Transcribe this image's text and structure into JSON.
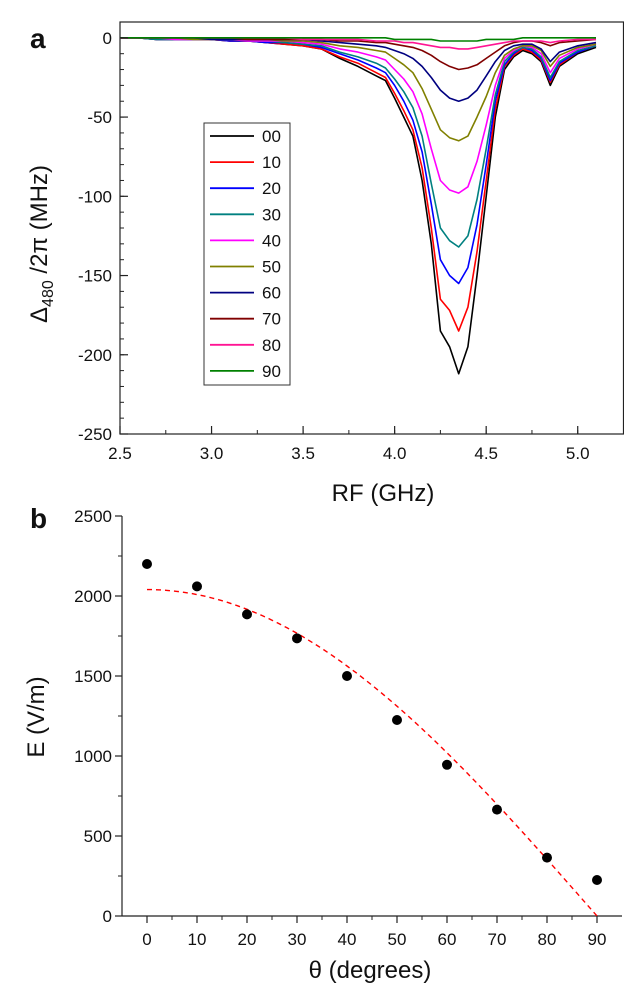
{
  "chart_data": [
    {
      "type": "line",
      "panel_label": "a",
      "xlabel": "RF (GHz)",
      "ylabel": "Δ480 /2π (MHz)",
      "ylabel_parts": {
        "prefix": "Δ",
        "subscript": "480",
        "suffix": " /2π (MHz)"
      },
      "xlim": [
        2.5,
        5.25
      ],
      "ylim": [
        -250,
        10
      ],
      "xticks": [
        2.5,
        3.0,
        3.5,
        4.0,
        4.5,
        5.0
      ],
      "xtick_labels": [
        "2.5",
        "3.0",
        "3.5",
        "4.0",
        "4.5",
        "5.0"
      ],
      "yticks": [
        0,
        -50,
        -100,
        -150,
        -200,
        -250
      ],
      "ytick_labels": [
        "0",
        "-50",
        "-100",
        "-150",
        "-200",
        "-250"
      ],
      "legend_position": "center-left",
      "x": [
        2.5,
        2.6,
        2.7,
        2.8,
        2.9,
        3.0,
        3.1,
        3.2,
        3.3,
        3.4,
        3.5,
        3.6,
        3.7,
        3.8,
        3.9,
        3.95,
        4.0,
        4.05,
        4.1,
        4.15,
        4.2,
        4.25,
        4.3,
        4.35,
        4.4,
        4.45,
        4.5,
        4.55,
        4.6,
        4.65,
        4.7,
        4.75,
        4.8,
        4.85,
        4.9,
        5.0,
        5.1
      ],
      "series": [
        {
          "name": "00",
          "color": "#000000",
          "values": [
            0,
            0,
            -1,
            -1,
            -1,
            -1,
            -2,
            -2,
            -3,
            -4,
            -5,
            -7,
            -13,
            -18,
            -24,
            -27,
            -38,
            -50,
            -62,
            -90,
            -130,
            -185,
            -195,
            -212,
            -195,
            -150,
            -100,
            -50,
            -20,
            -12,
            -8,
            -10,
            -15,
            -30,
            -18,
            -10,
            -6
          ]
        },
        {
          "name": "10",
          "color": "#ff0000",
          "values": [
            0,
            0,
            -1,
            -1,
            -1,
            -1,
            -2,
            -2,
            -3,
            -4,
            -5,
            -7,
            -12,
            -16,
            -22,
            -25,
            -35,
            -46,
            -58,
            -82,
            -120,
            -165,
            -172,
            -185,
            -170,
            -135,
            -90,
            -45,
            -18,
            -11,
            -7,
            -9,
            -14,
            -28,
            -17,
            -9,
            -5
          ]
        },
        {
          "name": "20",
          "color": "#0000ff",
          "values": [
            0,
            0,
            -1,
            -1,
            -1,
            -1,
            -2,
            -2,
            -3,
            -3,
            -4,
            -6,
            -10,
            -14,
            -19,
            -22,
            -30,
            -40,
            -52,
            -72,
            -105,
            -140,
            -150,
            -155,
            -145,
            -118,
            -80,
            -40,
            -17,
            -10,
            -6,
            -8,
            -13,
            -27,
            -16,
            -9,
            -5
          ]
        },
        {
          "name": "30",
          "color": "#008080",
          "values": [
            0,
            0,
            -1,
            -1,
            -1,
            -1,
            -1,
            -2,
            -2,
            -3,
            -4,
            -5,
            -9,
            -12,
            -16,
            -19,
            -26,
            -34,
            -44,
            -62,
            -92,
            -120,
            -128,
            -132,
            -125,
            -102,
            -70,
            -36,
            -15,
            -9,
            -6,
            -7,
            -12,
            -25,
            -15,
            -8,
            -5
          ]
        },
        {
          "name": "40",
          "color": "#ff00ff",
          "values": [
            0,
            0,
            0,
            -1,
            -1,
            -1,
            -1,
            -2,
            -2,
            -2,
            -3,
            -4,
            -7,
            -9,
            -12,
            -14,
            -20,
            -26,
            -34,
            -48,
            -70,
            -90,
            -96,
            -98,
            -94,
            -78,
            -55,
            -30,
            -13,
            -8,
            -5,
            -6,
            -10,
            -22,
            -13,
            -7,
            -4
          ]
        },
        {
          "name": "50",
          "color": "#808000",
          "values": [
            0,
            0,
            0,
            0,
            -1,
            -1,
            -1,
            -1,
            -1,
            -2,
            -2,
            -3,
            -5,
            -6,
            -8,
            -9,
            -13,
            -17,
            -22,
            -32,
            -45,
            -58,
            -63,
            -65,
            -62,
            -50,
            -37,
            -22,
            -11,
            -7,
            -5,
            -5,
            -8,
            -18,
            -11,
            -6,
            -4
          ]
        },
        {
          "name": "60",
          "color": "#000080",
          "values": [
            0,
            0,
            0,
            0,
            0,
            -1,
            -1,
            -1,
            -1,
            -1,
            -1,
            -2,
            -3,
            -4,
            -5,
            -6,
            -8,
            -10,
            -13,
            -18,
            -25,
            -33,
            -38,
            -40,
            -38,
            -33,
            -24,
            -15,
            -8,
            -5,
            -4,
            -4,
            -7,
            -15,
            -9,
            -5,
            -3
          ]
        },
        {
          "name": "70",
          "color": "#800000",
          "values": [
            0,
            0,
            0,
            0,
            0,
            0,
            0,
            -1,
            -1,
            -1,
            -1,
            -1,
            -2,
            -2,
            -3,
            -3,
            -4,
            -5,
            -6,
            -8,
            -11,
            -15,
            -18,
            -20,
            -19,
            -17,
            -13,
            -9,
            -5,
            -3,
            -2,
            -2,
            -3,
            -5,
            -3,
            -2,
            -1
          ]
        },
        {
          "name": "80",
          "color": "#ff1493",
          "values": [
            0,
            0,
            0,
            0,
            0,
            0,
            0,
            0,
            0,
            0,
            -1,
            -1,
            -1,
            -1,
            -2,
            -2,
            -2,
            -3,
            -3,
            -4,
            -5,
            -6,
            -6,
            -7,
            -7,
            -6,
            -5,
            -4,
            -3,
            -2,
            -2,
            -2,
            -2,
            -3,
            -2,
            -1,
            -1
          ]
        },
        {
          "name": "90",
          "color": "#008000",
          "values": [
            0,
            0,
            0,
            0,
            0,
            0,
            0,
            0,
            0,
            0,
            0,
            0,
            0,
            0,
            0,
            0,
            -1,
            -1,
            -1,
            -1,
            -1,
            -2,
            -2,
            -2,
            -2,
            -2,
            -1,
            -1,
            -1,
            -1,
            0,
            0,
            0,
            0,
            0,
            0,
            0
          ]
        }
      ]
    },
    {
      "type": "scatter",
      "panel_label": "b",
      "xlabel": "θ (degrees)",
      "ylabel": "E (V/m)",
      "xlim": [
        -5,
        95
      ],
      "ylim": [
        0,
        2500
      ],
      "xticks": [
        0,
        10,
        20,
        30,
        40,
        50,
        60,
        70,
        80,
        90
      ],
      "xtick_labels": [
        "0",
        "10",
        "20",
        "30",
        "40",
        "50",
        "60",
        "70",
        "80",
        "90"
      ],
      "yticks": [
        0,
        500,
        1000,
        1500,
        2000,
        2500
      ],
      "ytick_labels": [
        "0",
        "500",
        "1000",
        "1500",
        "2000",
        "2500"
      ],
      "points": {
        "x": [
          0,
          10,
          20,
          30,
          40,
          50,
          60,
          70,
          80,
          90
        ],
        "y": [
          2200,
          2060,
          1885,
          1735,
          1500,
          1225,
          945,
          665,
          365,
          225
        ]
      },
      "fit": {
        "style": "dashed",
        "color": "#ff0000",
        "model": "E0*cos(theta)",
        "E0": 2040,
        "x_range": [
          0,
          90
        ]
      },
      "marker_color": "#000000"
    }
  ]
}
